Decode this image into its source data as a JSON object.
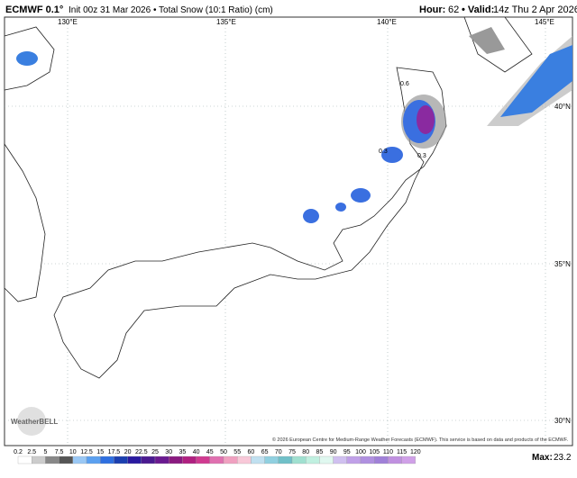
{
  "header": {
    "model": "ECMWF 0.1°",
    "init": "Init 00z 31 Mar 2026 • Total Snow (10:1 Ratio) (cm)",
    "hour_label": "Hour:",
    "hour": "62",
    "valid_label": "• Valid:",
    "valid": "14z Thu 2 Apr 2026"
  },
  "map": {
    "lon_labels": [
      "130°E",
      "135°E",
      "140°E",
      "145°E"
    ],
    "lat_labels": [
      "40°N",
      "35°N",
      "30°N"
    ],
    "contour_labels": [
      "0.6",
      "0.3",
      "0.3"
    ],
    "logo": "WeatherBELL",
    "credit": "© 2026 European Centre for Medium-Range Weather Forecasts (ECMWF). This service is based on data and products of the ECMWF."
  },
  "legend": {
    "labels": [
      "0.2",
      "2.5",
      "5",
      "7.5",
      "10",
      "12.5",
      "15",
      "17.5",
      "20",
      "22.5",
      "25",
      "30",
      "35",
      "40",
      "45",
      "50",
      "55",
      "60",
      "65",
      "70",
      "75",
      "80",
      "85",
      "90",
      "95",
      "100",
      "105",
      "110",
      "115",
      "120"
    ],
    "max_label": "Max:",
    "max": "23.2"
  }
}
